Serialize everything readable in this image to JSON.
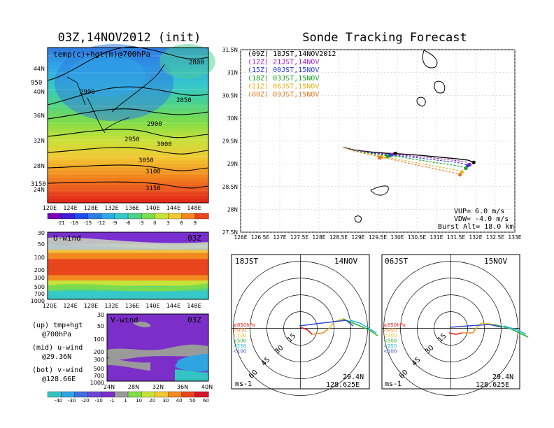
{
  "left_title": "03Z,14NOV2012 (init)",
  "right_title": "Sonde Tracking Forecast",
  "top_map": {
    "label": "temp(c)+hgt(m)@700hPa",
    "lat_ticks": [
      "44N",
      "40N",
      "36N",
      "32N",
      "28N",
      "24N"
    ],
    "lon_ticks": [
      "120E",
      "124E",
      "128E",
      "132E",
      "136E",
      "140E",
      "144E",
      "148E"
    ],
    "contours": [
      {
        "label": "2800"
      },
      {
        "label": "2850"
      },
      {
        "label": "2900"
      },
      {
        "label": "2900"
      },
      {
        "label": "2950"
      },
      {
        "label": "3000"
      },
      {
        "label": "3050"
      },
      {
        "label": "3100"
      },
      {
        "label": "3150"
      },
      {
        "label": "3150"
      },
      {
        "label": "950"
      }
    ],
    "colorbar": {
      "labels": [
        "-21",
        "-18",
        "-15",
        "-12",
        "-9",
        "-6",
        "-3",
        "0",
        "3",
        "6",
        "9"
      ],
      "colors": [
        "#7a00b5",
        "#3c1fd6",
        "#1e4cf0",
        "#2f7de0",
        "#2fa8e8",
        "#35c9c9",
        "#4cd28e",
        "#7fdc4a",
        "#c7e23a",
        "#f2c933",
        "#f38a1f",
        "#e8451c"
      ]
    }
  },
  "u_panel": {
    "label": "U-wind",
    "time": "03Z",
    "p_ticks": [
      "30",
      "50",
      "100",
      "200",
      "300",
      "500",
      "700",
      "1000"
    ],
    "lon_ticks": [
      "120E",
      "124E",
      "128E",
      "132E",
      "136E",
      "140E",
      "144E",
      "148E"
    ]
  },
  "v_panel": {
    "label": "V-wind",
    "time": "03Z",
    "p_ticks": [
      "30",
      "50",
      "100",
      "200",
      "300",
      "500",
      "700",
      "1000"
    ],
    "lat_ticks": [
      "24N",
      "28N",
      "32N",
      "36N",
      "40N"
    ],
    "colorbar": {
      "labels": [
        "-40",
        "-30",
        "-20",
        "-10",
        "-1",
        "1",
        "10",
        "20",
        "30",
        "40",
        "50",
        "60"
      ],
      "colors": [
        "#34c3c0",
        "#2ea4e0",
        "#3d6fe0",
        "#6f45d6",
        "#7b2fc8",
        "#9a9a9a",
        "#7fdc4a",
        "#c7e23a",
        "#f2c933",
        "#f38a1f",
        "#e8451c",
        "#d4142a"
      ]
    }
  },
  "notes": [
    "(up) tmp+hgt",
    "@700hPa",
    "(mid) u-wind",
    "@29.36N",
    "(bot) v-wind",
    "@128.66E"
  ],
  "legend": [
    {
      "text": "(09Z)  18JST,14NOV2012",
      "color": "#000000"
    },
    {
      "text": "(12Z)  21JST,14NOV",
      "color": "#a020c0"
    },
    {
      "text": "(15Z)  00JST,15NOV",
      "color": "#2a3cd8"
    },
    {
      "text": "(18Z)  03JST,15NOV",
      "color": "#10a020"
    },
    {
      "text": "(21Z)  06JST,15NOV",
      "color": "#e8b020"
    },
    {
      "text": "(00Z)  09JST,15NOV",
      "color": "#e87820"
    }
  ],
  "track_info": [
    "VUP=  6.0  m/s",
    "VDW= -4.0  m/s",
    "Burst Alt=  18.0  km"
  ],
  "chart_data": {
    "type": "line",
    "xlabel": "",
    "ylabel": "",
    "xlim": [
      126,
      133
    ],
    "ylim": [
      27.5,
      31.5
    ],
    "x_ticks": [
      "126E",
      "126.5E",
      "127E",
      "127.5E",
      "128E",
      "128.5E",
      "129E",
      "129.5E",
      "130E",
      "130.5E",
      "131E",
      "131.5E",
      "132E",
      "132.5E",
      "133E"
    ],
    "y_ticks": [
      "31.5N",
      "31N",
      "30.5N",
      "30N",
      "29.5N",
      "29N",
      "28.5N",
      "28N",
      "27.5N"
    ],
    "grid": true,
    "series": [
      {
        "name": "(09Z)",
        "color": "#000000",
        "x": [
          128.62,
          128.9,
          129.3,
          129.7,
          130.0,
          130.5,
          131.0,
          131.5,
          131.8,
          131.95
        ],
        "y": [
          29.36,
          29.3,
          29.26,
          29.23,
          29.22,
          29.19,
          29.15,
          29.11,
          29.08,
          29.03
        ],
        "burst": [
          129.95,
          29.22
        ]
      },
      {
        "name": "(12Z)",
        "color": "#a020c0",
        "x": [
          128.62,
          128.9,
          129.3,
          129.7,
          130.0,
          130.5,
          131.0,
          131.5,
          131.75,
          131.85
        ],
        "y": [
          29.36,
          29.3,
          29.25,
          29.21,
          29.2,
          29.16,
          29.12,
          29.07,
          29.04,
          28.98
        ],
        "burst": [
          129.85,
          29.2
        ]
      },
      {
        "name": "(15Z)",
        "color": "#2a3cd8",
        "x": [
          128.62,
          128.9,
          129.3,
          129.7,
          130.0,
          130.5,
          131.0,
          131.5,
          131.7,
          131.8
        ],
        "y": [
          29.36,
          29.29,
          29.24,
          29.2,
          29.18,
          29.13,
          29.08,
          29.03,
          29.0,
          28.96
        ],
        "burst": [
          129.8,
          29.18
        ]
      },
      {
        "name": "(18Z)",
        "color": "#10a020",
        "x": [
          128.62,
          128.9,
          129.3,
          129.7,
          130.0,
          130.5,
          131.0,
          131.5,
          131.65,
          131.75
        ],
        "y": [
          29.36,
          29.29,
          29.23,
          29.18,
          29.16,
          29.09,
          29.02,
          28.96,
          28.93,
          28.9
        ],
        "burst": [
          129.75,
          29.16
        ]
      },
      {
        "name": "(21Z)",
        "color": "#e8b020",
        "x": [
          128.62,
          128.9,
          129.3,
          129.6,
          130.0,
          130.5,
          131.0,
          131.4,
          131.6,
          131.65
        ],
        "y": [
          29.36,
          29.28,
          29.21,
          29.16,
          29.1,
          29.02,
          28.94,
          28.88,
          28.84,
          28.82
        ],
        "burst": [
          129.6,
          29.15
        ]
      },
      {
        "name": "(00Z)",
        "color": "#e87820",
        "x": [
          128.62,
          128.9,
          129.3,
          129.6,
          130.0,
          130.5,
          131.0,
          131.35,
          131.55,
          131.6
        ],
        "y": [
          29.36,
          29.28,
          29.2,
          29.14,
          29.07,
          28.97,
          28.88,
          28.82,
          28.78,
          28.76
        ],
        "burst": [
          129.55,
          29.13
        ]
      }
    ]
  },
  "hodo_left": {
    "time": "18JST",
    "date": "14NOV",
    "lat": "29.4N",
    "lon": "128.625E",
    "unit": "ms-1",
    "rings": [
      "15",
      "30",
      "45",
      "60"
    ],
    "levels": [
      {
        "text": "≥850hPa",
        "color": "#e81c1c"
      },
      {
        "text": "<850",
        "color": "#f38a1f"
      },
      {
        "text": "<700",
        "color": "#e8c020"
      },
      {
        "text": "<500",
        "color": "#30b030"
      },
      {
        "text": "<250",
        "color": "#20b8e0"
      },
      {
        "text": "<100",
        "color": "#3048d8"
      }
    ]
  },
  "hodo_right": {
    "time": "06JST",
    "date": "15NOV",
    "lat": "29.4N",
    "lon": "128.625E",
    "unit": "ms-1",
    "rings": [
      "15",
      "30",
      "45",
      "60"
    ],
    "levels": [
      {
        "text": "≥850hPa",
        "color": "#e81c1c"
      },
      {
        "text": "<850",
        "color": "#f38a1f"
      },
      {
        "text": "<700",
        "color": "#e8c020"
      },
      {
        "text": "<500",
        "color": "#30b030"
      },
      {
        "text": "<250",
        "color": "#20b8e0"
      },
      {
        "text": "<100",
        "color": "#3048d8"
      }
    ]
  }
}
